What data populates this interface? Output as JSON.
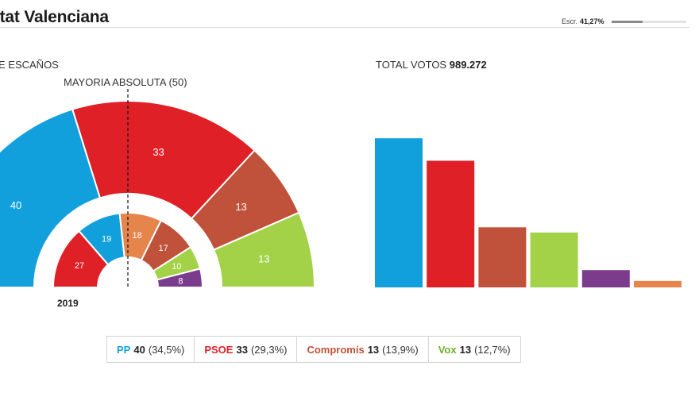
{
  "header": {
    "title": "itat Valenciana",
    "scrutiny_label": "Escr.",
    "scrutiny_value": "41,27%",
    "scrutiny_fraction": 0.4127
  },
  "labels": {
    "seats_heading": "E ESCAÑOS",
    "majority_label": "MAYORIA ABSOLUTA (50)",
    "total_votes_label": "TOTAL VOTOS",
    "total_votes_value": "989.272",
    "previous_year": "2019"
  },
  "colors": {
    "pp": "#12a0dc",
    "psoe": "#df2027",
    "compromis": "#c0513a",
    "vox": "#a3d248",
    "purple": "#7c3c8e",
    "orange": "#e5844b"
  },
  "chart_data": [
    {
      "type": "pie",
      "subtype": "hemicycle",
      "series": [
        {
          "name": "PP",
          "values": [
            40
          ],
          "color": "#12a0dc"
        },
        {
          "name": "PSOE",
          "values": [
            33
          ],
          "color": "#df2027"
        },
        {
          "name": "Compromís",
          "values": [
            13
          ],
          "color": "#c0513a"
        },
        {
          "name": "Vox",
          "values": [
            13
          ],
          "color": "#a3d248"
        }
      ],
      "majority": 50,
      "majority_label": "MAYORIA ABSOLUTA (50)"
    },
    {
      "type": "pie",
      "subtype": "hemicycle",
      "label": "2019",
      "slices": [
        {
          "value": 27,
          "color": "#df2027"
        },
        {
          "value": 19,
          "color": "#12a0dc"
        },
        {
          "value": 18,
          "color": "#e5844b"
        },
        {
          "value": 17,
          "color": "#c0513a"
        },
        {
          "value": 10,
          "color": "#a3d248"
        },
        {
          "value": 8,
          "color": "#7c3c8e"
        }
      ]
    },
    {
      "type": "bar",
      "title": "TOTAL VOTOS 989.272",
      "values_pct": [
        34.5,
        29.3,
        13.9,
        12.7,
        4.0,
        1.5
      ],
      "colors": [
        "#12a0dc",
        "#df2027",
        "#c0513a",
        "#a3d248",
        "#7c3c8e",
        "#e5844b"
      ],
      "ylim": [
        0,
        36
      ]
    }
  ],
  "legend": [
    {
      "party": "PP",
      "seats": "40",
      "pct": "(34,5%)",
      "color": "#12a0dc"
    },
    {
      "party": "PSOE",
      "seats": "33",
      "pct": "(29,3%)",
      "color": "#df2027"
    },
    {
      "party": "Compromís",
      "seats": "13",
      "pct": "(13,9%)",
      "color": "#c0513a"
    },
    {
      "party": "Vox",
      "seats": "13",
      "pct": "(12,7%)",
      "color": "#6fae2a"
    }
  ]
}
